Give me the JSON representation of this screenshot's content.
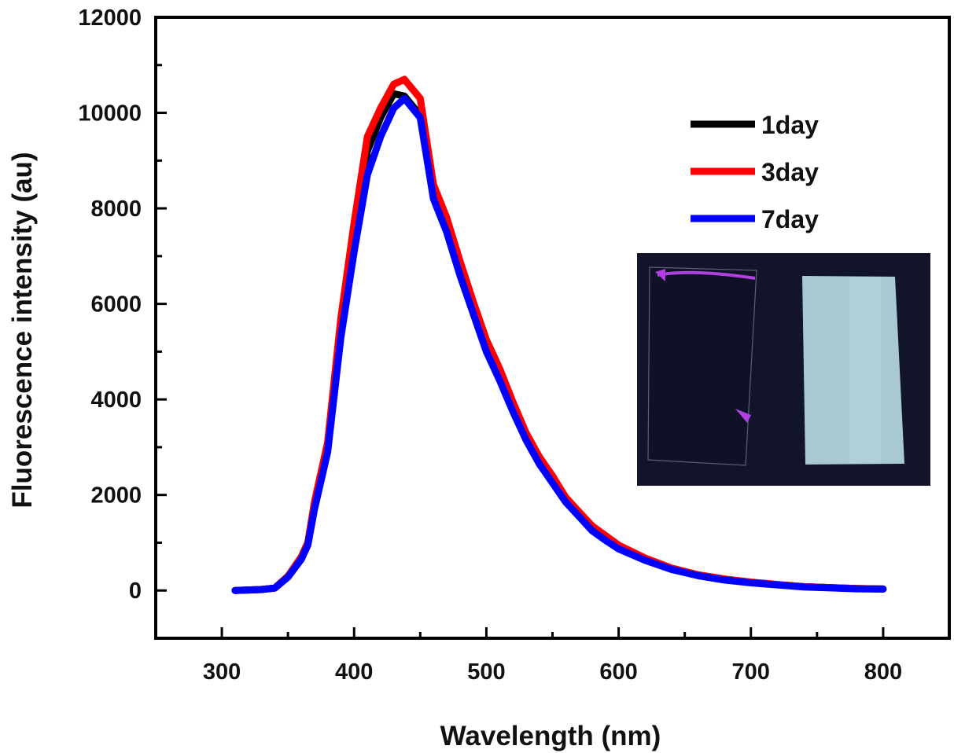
{
  "chart_data": {
    "type": "line",
    "title": "",
    "xlabel": "Wavelength (nm)",
    "ylabel": "Fluorescence intensity (au)",
    "xlim": [
      250,
      850
    ],
    "ylim": [
      -1000,
      12000
    ],
    "xticks": [
      300,
      400,
      500,
      600,
      700,
      800
    ],
    "yticks": [
      0,
      2000,
      4000,
      6000,
      8000,
      10000,
      12000
    ],
    "grid": false,
    "legend_position": "top-right",
    "series": [
      {
        "name": "1day",
        "color": "#000000",
        "x": [
          310,
          330,
          340,
          350,
          360,
          365,
          370,
          380,
          390,
          400,
          410,
          420,
          430,
          438,
          450,
          460,
          470,
          480,
          490,
          500,
          510,
          520,
          530,
          540,
          550,
          560,
          570,
          580,
          590,
          600,
          620,
          640,
          660,
          680,
          700,
          720,
          740,
          760,
          780,
          800
        ],
        "y": [
          0,
          20,
          50,
          300,
          700,
          1000,
          1800,
          3000,
          5500,
          7400,
          9200,
          9900,
          10400,
          10350,
          9950,
          8300,
          7600,
          6700,
          5900,
          5100,
          4500,
          3800,
          3200,
          2700,
          2300,
          1900,
          1600,
          1300,
          1100,
          900,
          650,
          450,
          320,
          230,
          170,
          120,
          80,
          60,
          40,
          30
        ]
      },
      {
        "name": "3day",
        "color": "#ff0000",
        "x": [
          310,
          330,
          340,
          350,
          360,
          365,
          370,
          380,
          390,
          400,
          410,
          420,
          430,
          438,
          450,
          460,
          470,
          480,
          490,
          500,
          510,
          520,
          530,
          540,
          550,
          560,
          570,
          580,
          590,
          600,
          620,
          640,
          660,
          680,
          700,
          720,
          740,
          760,
          780,
          800
        ],
        "y": [
          0,
          20,
          50,
          300,
          700,
          1000,
          1850,
          3100,
          5700,
          7700,
          9500,
          10100,
          10600,
          10700,
          10300,
          8500,
          7800,
          6900,
          6050,
          5250,
          4650,
          3950,
          3300,
          2800,
          2400,
          1950,
          1650,
          1350,
          1150,
          950,
          680,
          470,
          330,
          240,
          175,
          125,
          80,
          60,
          40,
          30
        ]
      },
      {
        "name": "7day",
        "color": "#0000ff",
        "x": [
          310,
          330,
          340,
          350,
          360,
          365,
          370,
          380,
          390,
          400,
          410,
          420,
          430,
          438,
          450,
          460,
          470,
          480,
          490,
          500,
          510,
          520,
          530,
          540,
          550,
          560,
          570,
          580,
          590,
          600,
          620,
          640,
          660,
          680,
          700,
          720,
          740,
          760,
          780,
          800
        ],
        "y": [
          0,
          20,
          50,
          280,
          650,
          950,
          1700,
          2900,
          5300,
          7100,
          8700,
          9500,
          10100,
          10300,
          9900,
          8200,
          7500,
          6600,
          5800,
          5000,
          4400,
          3750,
          3150,
          2650,
          2250,
          1850,
          1550,
          1250,
          1050,
          870,
          630,
          440,
          310,
          220,
          160,
          115,
          75,
          55,
          35,
          30
        ]
      }
    ],
    "inset": {
      "description": "photo of two film samples under UV light",
      "colors": {
        "background": "#12142a",
        "left_sample": "#0f1226",
        "left_edge_glow": "#b040e0",
        "right_sample": "#a9c9d2"
      }
    }
  },
  "colors": {
    "axis": "#000000",
    "text": "#111111"
  }
}
